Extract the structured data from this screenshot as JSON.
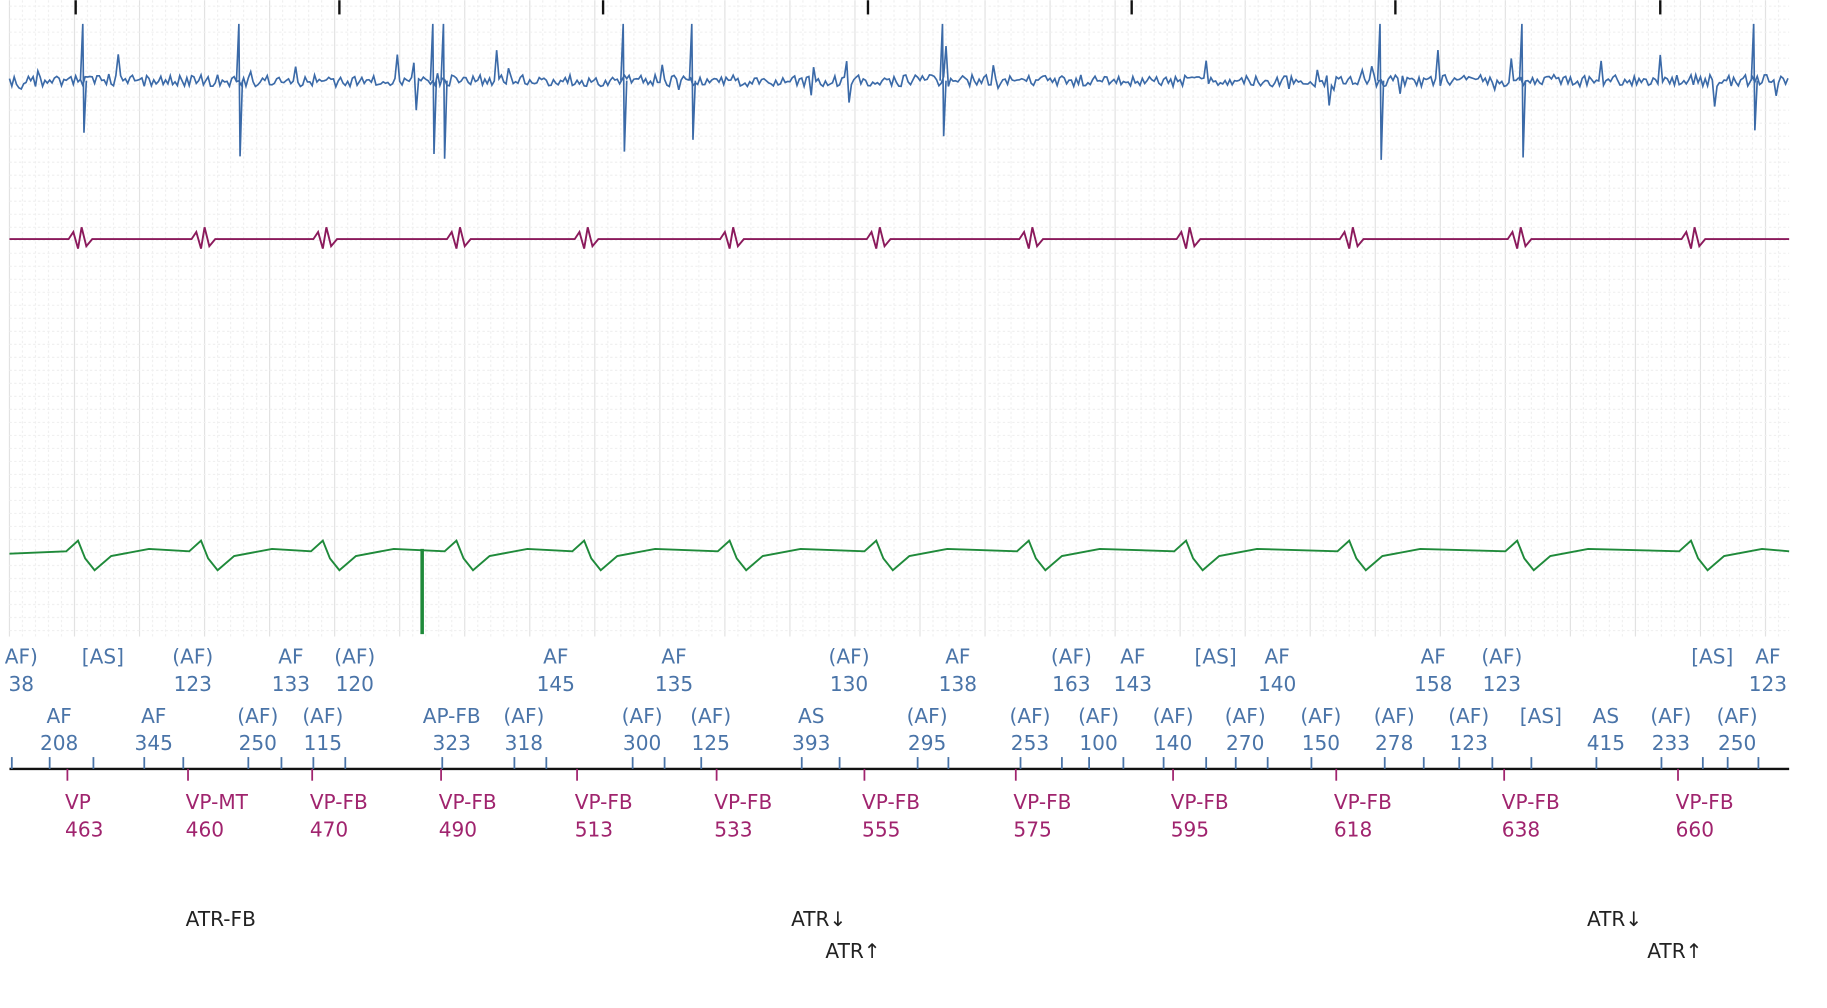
{
  "atrial_upper": [
    {
      "label": "AF)",
      "interval": "38"
    },
    {
      "label": "[AS]"
    },
    {
      "label": "(AF)",
      "interval": "123"
    },
    {
      "label": "AF",
      "interval": "133"
    },
    {
      "label": "(AF)",
      "interval": "120"
    },
    {
      "label": "AF",
      "interval": "145"
    },
    {
      "label": "AF",
      "interval": "135"
    },
    {
      "label": "(AF)",
      "interval": "130"
    },
    {
      "label": "AF",
      "interval": "138"
    },
    {
      "label": "(AF)",
      "interval": "163"
    },
    {
      "label": "AF",
      "interval": "143"
    },
    {
      "label": "[AS]"
    },
    {
      "label": "AF",
      "interval": "140"
    },
    {
      "label": "AF",
      "interval": "158"
    },
    {
      "label": "(AF)",
      "interval": "123"
    },
    {
      "label": "[AS]"
    },
    {
      "label": "AF",
      "interval": "123"
    }
  ],
  "atrial_lower": [
    {
      "label": "AF",
      "interval": "208"
    },
    {
      "label": "AF",
      "interval": "345"
    },
    {
      "label": "(AF)",
      "interval": "250"
    },
    {
      "label": "(AF)",
      "interval": "115"
    },
    {
      "label": "AP-FB",
      "interval": "323"
    },
    {
      "label": "(AF)",
      "interval": "318"
    },
    {
      "label": "(AF)",
      "interval": "300"
    },
    {
      "label": "(AF)",
      "interval": "125"
    },
    {
      "label": "AS",
      "interval": "393"
    },
    {
      "label": "(AF)",
      "interval": "295"
    },
    {
      "label": "(AF)",
      "interval": "253"
    },
    {
      "label": "(AF)",
      "interval": "100"
    },
    {
      "label": "(AF)",
      "interval": "140"
    },
    {
      "label": "(AF)",
      "interval": "270"
    },
    {
      "label": "(AF)",
      "interval": "150"
    },
    {
      "label": "(AF)",
      "interval": "278"
    },
    {
      "label": "(AF)",
      "interval": "123"
    },
    {
      "label": "[AS]"
    },
    {
      "label": "AS",
      "interval": "415"
    },
    {
      "label": "(AF)",
      "interval": "233"
    },
    {
      "label": "(AF)",
      "interval": "250"
    }
  ],
  "ventricular": [
    {
      "label": "VP",
      "interval": "463"
    },
    {
      "label": "VP-MT",
      "interval": "460"
    },
    {
      "label": "VP-FB",
      "interval": "470"
    },
    {
      "label": "VP-FB",
      "interval": "490"
    },
    {
      "label": "VP-FB",
      "interval": "513"
    },
    {
      "label": "VP-FB",
      "interval": "533"
    },
    {
      "label": "VP-FB",
      "interval": "555"
    },
    {
      "label": "VP-FB",
      "interval": "575"
    },
    {
      "label": "VP-FB",
      "interval": "595"
    },
    {
      "label": "VP-FB",
      "interval": "618"
    },
    {
      "label": "VP-FB",
      "interval": "638"
    },
    {
      "label": "VP-FB",
      "interval": "660"
    }
  ],
  "events": [
    "ATR-FB",
    "ATR↓",
    "ATR↑",
    "ATR↓",
    "ATR↑"
  ]
}
